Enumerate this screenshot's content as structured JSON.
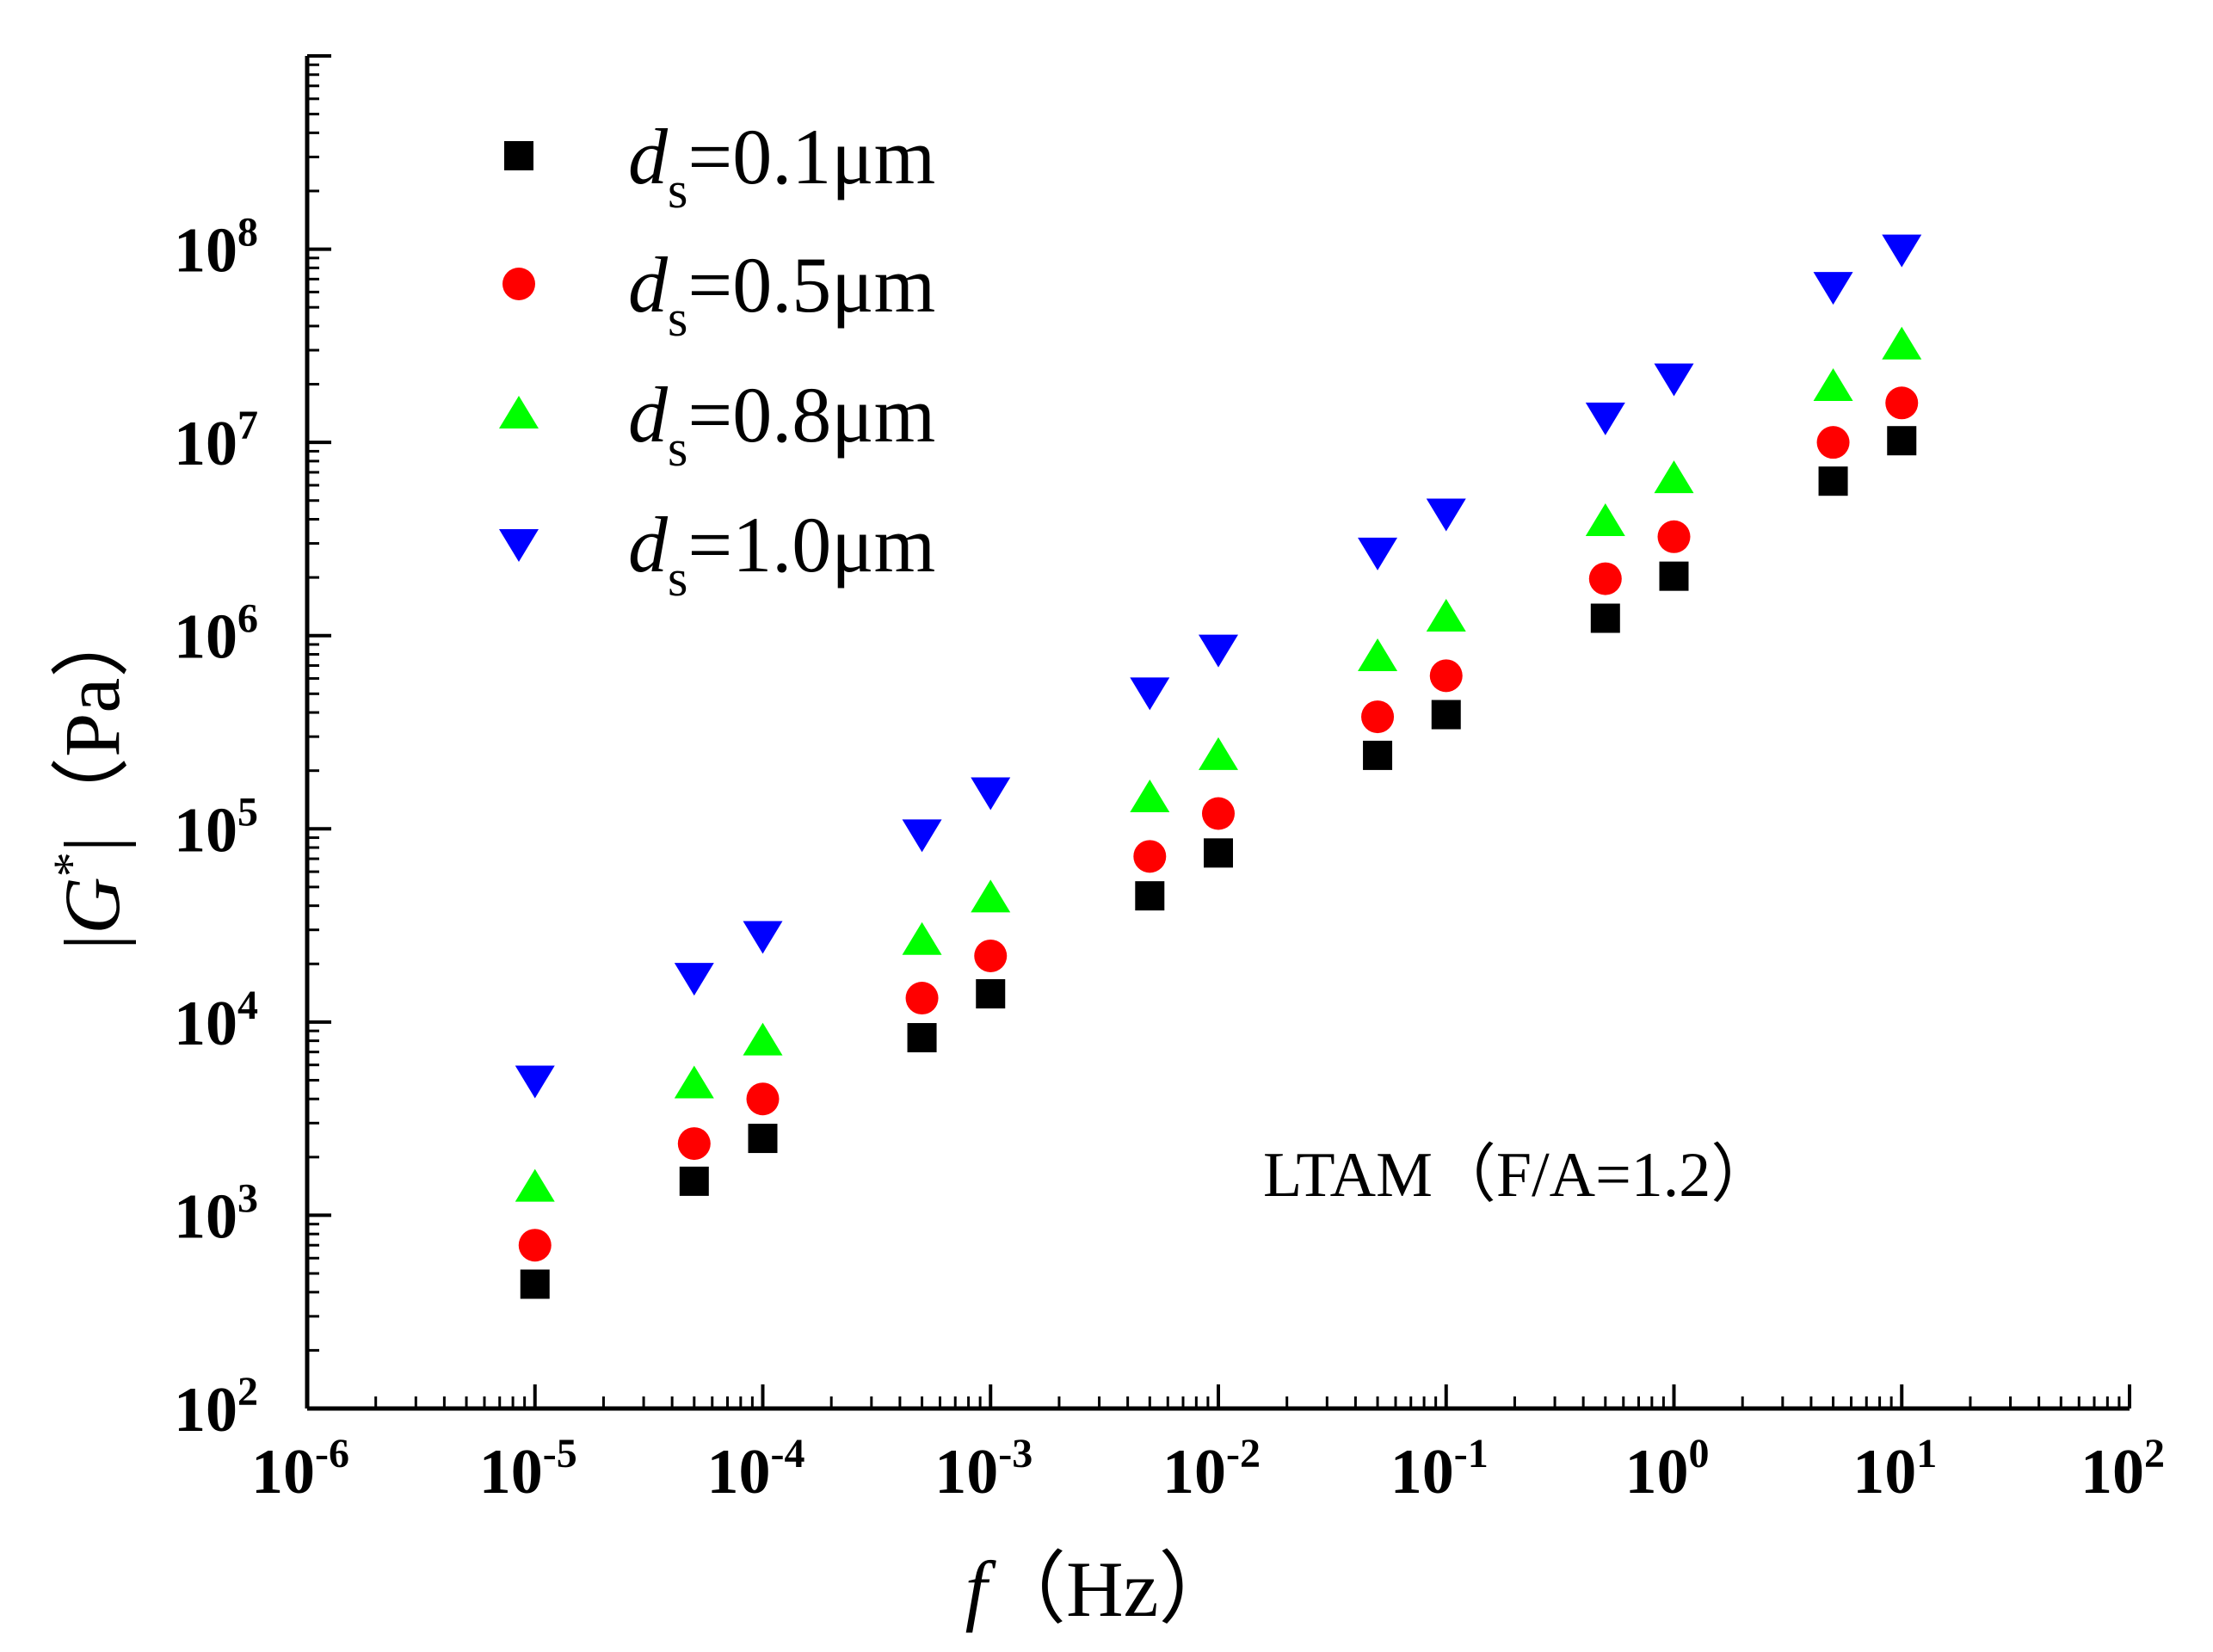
{
  "chart_data": {
    "type": "scatter",
    "xscale": "log",
    "yscale": "log",
    "xlim": [
      1e-06,
      100
    ],
    "ylim": [
      100,
      1000000000.0
    ],
    "xlabel_italic": "f",
    "xlabel_unit": "（Hz）",
    "ylabel_left": "|",
    "ylabel_italic": "G",
    "ylabel_sup": "*",
    "ylabel_unit": "|（Pa）",
    "annotation": "LTAM（F/A=1.2）",
    "x_ticks": [
      {
        "base": "10",
        "exp": "-6"
      },
      {
        "base": "10",
        "exp": "-5"
      },
      {
        "base": "10",
        "exp": "-4"
      },
      {
        "base": "10",
        "exp": "-3"
      },
      {
        "base": "10",
        "exp": "-2"
      },
      {
        "base": "10",
        "exp": "-1"
      },
      {
        "base": "10",
        "exp": "0"
      },
      {
        "base": "10",
        "exp": "1"
      },
      {
        "base": "10",
        "exp": "2"
      }
    ],
    "y_ticks": [
      {
        "base": "10",
        "exp": "2"
      },
      {
        "base": "10",
        "exp": "3"
      },
      {
        "base": "10",
        "exp": "4"
      },
      {
        "base": "10",
        "exp": "5"
      },
      {
        "base": "10",
        "exp": "6"
      },
      {
        "base": "10",
        "exp": "7"
      },
      {
        "base": "10",
        "exp": "8"
      }
    ],
    "x": [
      1e-05,
      5e-05,
      0.0001,
      0.0005,
      0.001,
      0.005,
      0.01,
      0.05,
      0.1,
      0.5,
      1,
      5,
      10
    ],
    "series": [
      {
        "name_italic": "d",
        "name_sub": "s",
        "name_rest": "=0.1μm",
        "marker": "square",
        "color": "#000000",
        "values": [
          440,
          1500,
          2500,
          8300,
          14000,
          45000,
          75000,
          240000,
          390000,
          1230000,
          2030000,
          6300000,
          10200000
        ]
      },
      {
        "name_italic": "d",
        "name_sub": "s",
        "name_rest": "=0.5μm",
        "marker": "circle",
        "color": "#ff0000",
        "values": [
          700,
          2350,
          4000,
          13300,
          22000,
          72000,
          120000,
          380000,
          620000,
          1970000,
          3250000,
          10000000,
          16000000
        ]
      },
      {
        "name_italic": "d",
        "name_sub": "s",
        "name_rest": "=0.8μm",
        "marker": "triangle-up",
        "color": "#00ff00",
        "values": [
          1400,
          4800,
          8000,
          26500,
          44000,
          145000,
          240000,
          780000,
          1250000,
          3900000,
          6500000,
          19500000,
          32000000
        ]
      },
      {
        "name_italic": "d",
        "name_sub": "s",
        "name_rest": "=1.0μm",
        "marker": "triangle-down",
        "color": "#0000ff",
        "values": [
          5000,
          17000,
          28000,
          94000,
          155000,
          510000,
          850000,
          2700000,
          4300000,
          13500000,
          21500000,
          64000000,
          100000000
        ]
      }
    ],
    "legend_position": "top-left"
  }
}
